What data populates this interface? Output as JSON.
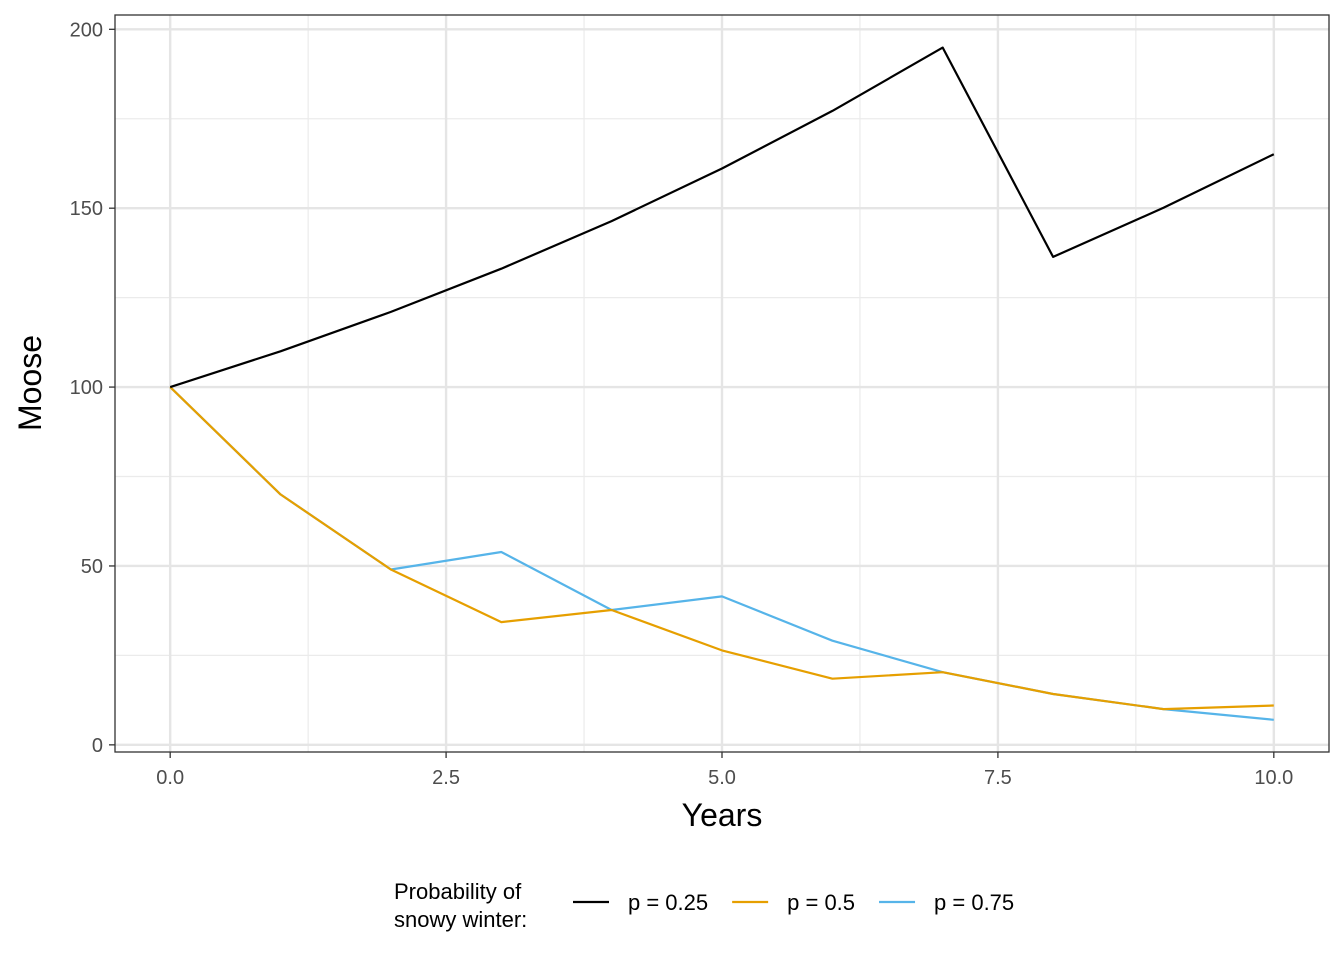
{
  "chart_data": {
    "type": "line",
    "xlabel": "Years",
    "ylabel": "Moose",
    "xlim": [
      -0.5,
      10.5
    ],
    "ylim": [
      -2,
      204
    ],
    "x_ticks": [
      0.0,
      2.5,
      5.0,
      7.5,
      10.0
    ],
    "x_tick_labels": [
      "0.0",
      "2.5",
      "5.0",
      "7.5",
      "10.0"
    ],
    "y_ticks": [
      0,
      50,
      100,
      150,
      200
    ],
    "y_tick_labels": [
      "0",
      "50",
      "100",
      "150",
      "200"
    ],
    "grid": true,
    "legend": {
      "title_lines": [
        "Probability of",
        "snowy winter:"
      ],
      "position": "bottom"
    },
    "x": [
      0,
      1,
      2,
      3,
      4,
      5,
      6,
      7,
      8,
      9,
      10
    ],
    "series": [
      {
        "name": "p = 0.25",
        "color": "#000000",
        "values": [
          100,
          110,
          121,
          133.1,
          146.4,
          161.1,
          177.2,
          194.9,
          136.4,
          150.1,
          165.1
        ]
      },
      {
        "name": "p = 0.5",
        "color": "#E69F00",
        "values": [
          100,
          70,
          49,
          34.3,
          37.7,
          26.4,
          18.5,
          20.3,
          14.2,
          10.0,
          11.0
        ]
      },
      {
        "name": "p = 0.75",
        "color": "#56B4E9",
        "values": [
          100,
          70,
          49,
          53.9,
          37.7,
          41.5,
          29.1,
          20.3,
          14.2,
          10.0,
          7.0
        ]
      }
    ]
  }
}
